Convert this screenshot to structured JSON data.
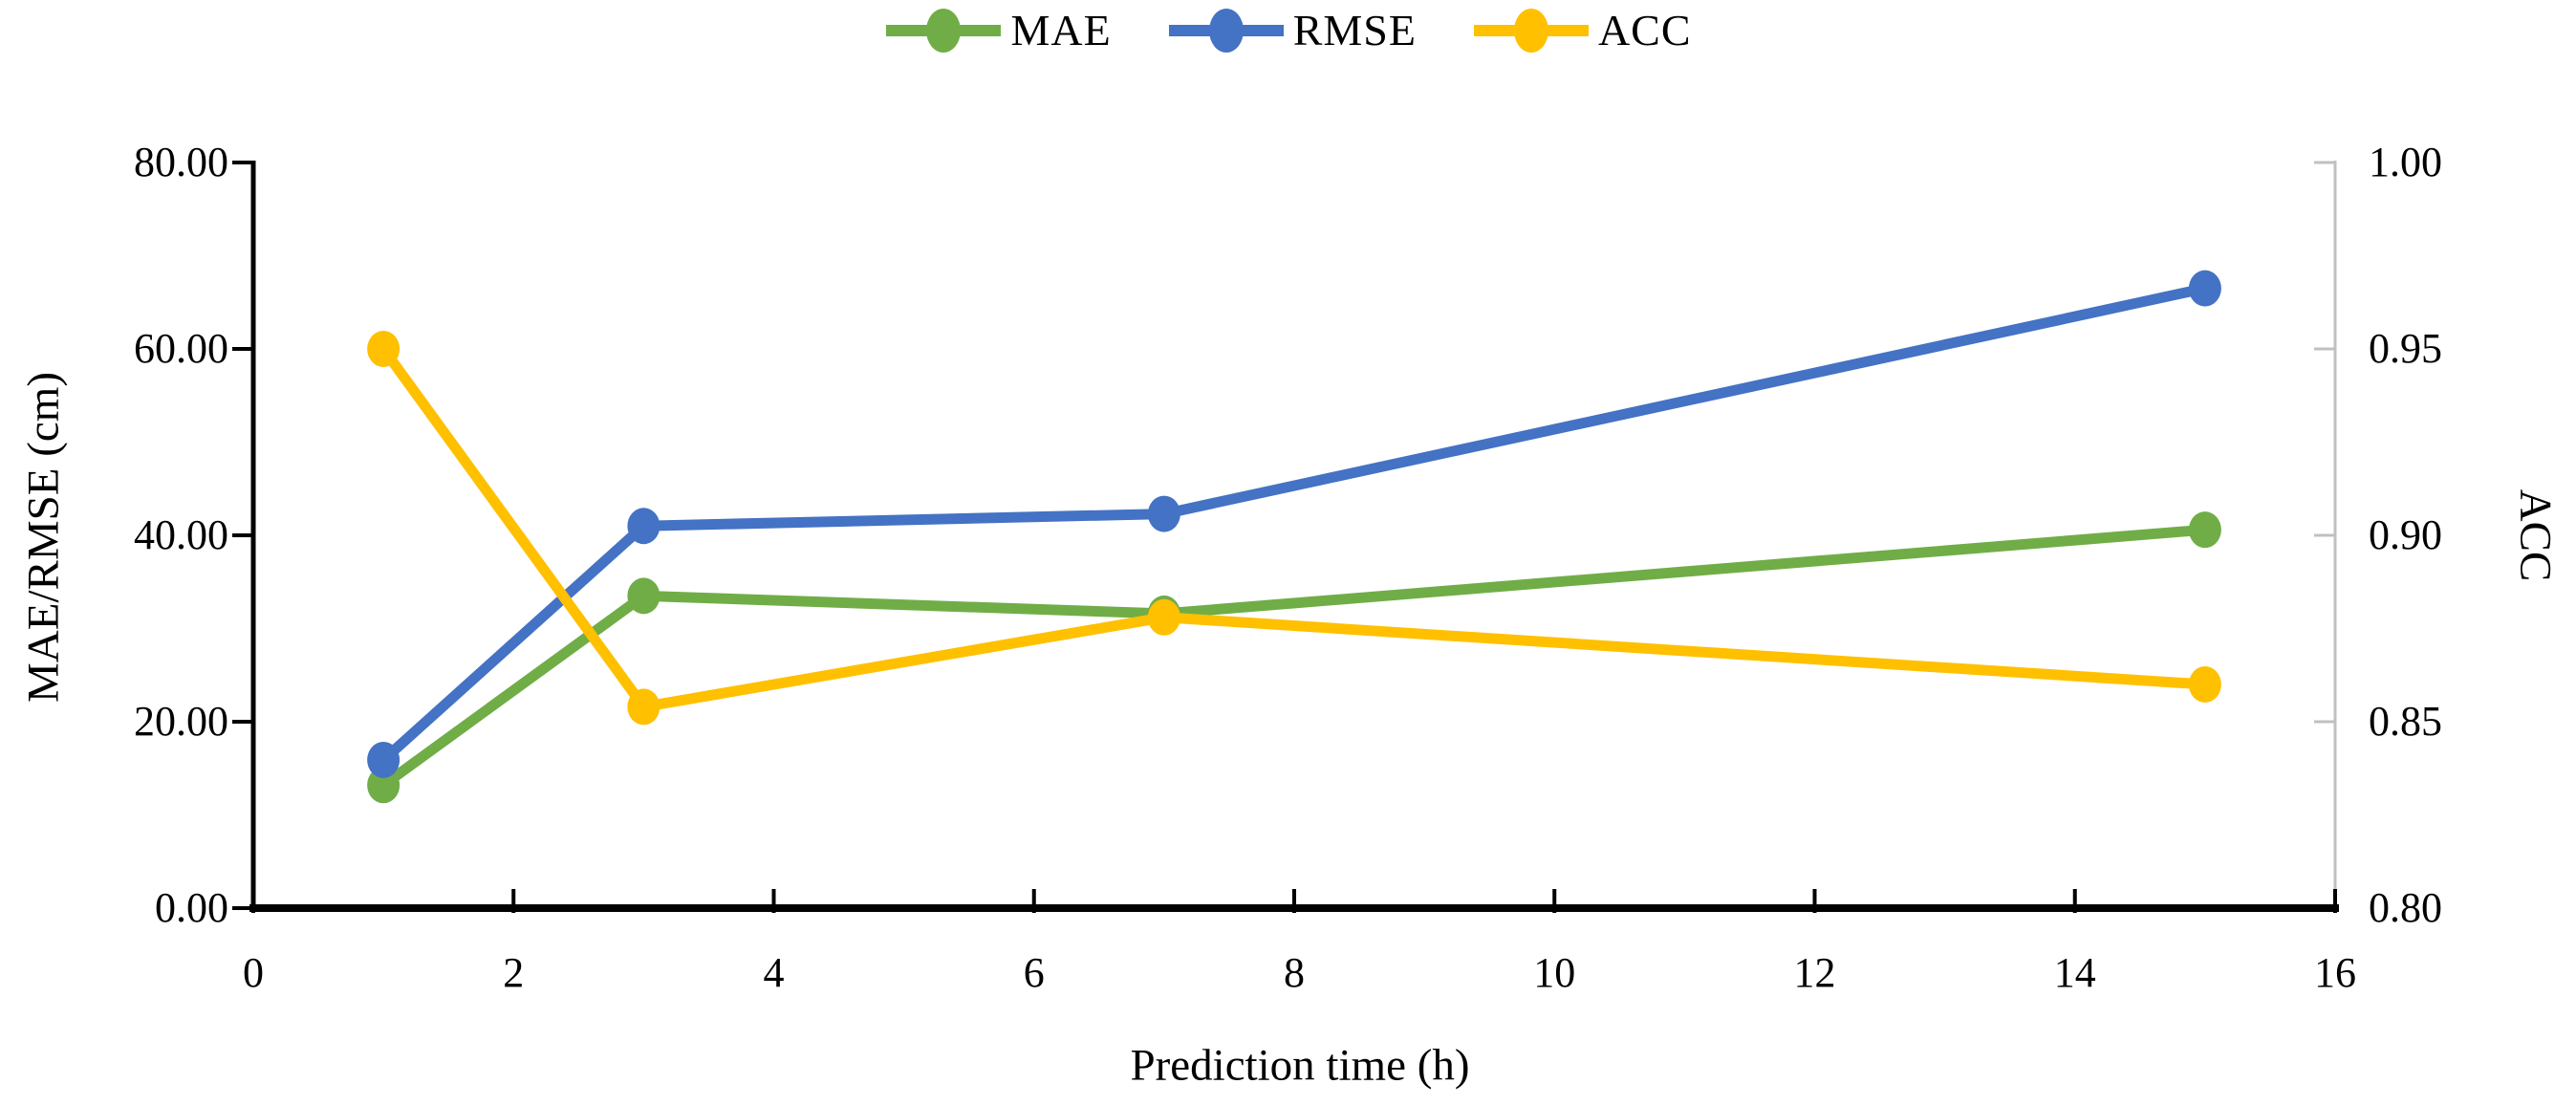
{
  "chart_data": {
    "type": "line",
    "title": "",
    "x": [
      1,
      3,
      7,
      15
    ],
    "x_axis": {
      "label": "Prediction time (h)",
      "min": 0,
      "max": 16,
      "tick_values": [
        0,
        2,
        4,
        6,
        8,
        10,
        12,
        14,
        16
      ],
      "tick_labels": [
        "0",
        "2",
        "4",
        "6",
        "8",
        "10",
        "12",
        "14",
        "16"
      ]
    },
    "left_axis": {
      "label": "MAE/RMSE (cm)",
      "min": 0,
      "max": 80,
      "tick_values": [
        0,
        20,
        40,
        60,
        80
      ],
      "tick_labels": [
        "0.00",
        "20.00",
        "40.00",
        "60.00",
        "80.00"
      ]
    },
    "right_axis": {
      "label": "ACC",
      "min": 0.8,
      "max": 1.0,
      "tick_values": [
        0.8,
        0.85,
        0.9,
        0.95,
        1.0
      ],
      "tick_labels": [
        "0.80",
        "0.85",
        "0.90",
        "0.95",
        "1.00"
      ]
    },
    "series": [
      {
        "name": "MAE",
        "axis": "left",
        "color": "#70AD47",
        "values": [
          13.2,
          33.5,
          31.6,
          40.6
        ]
      },
      {
        "name": "RMSE",
        "axis": "left",
        "color": "#4472C4",
        "values": [
          15.9,
          41.0,
          42.3,
          66.5
        ]
      },
      {
        "name": "ACC",
        "axis": "right",
        "color": "#FFC000",
        "values": [
          0.95,
          0.854,
          0.878,
          0.86
        ]
      }
    ],
    "legend": {
      "position": "top-center",
      "entries": [
        "MAE",
        "RMSE",
        "ACC"
      ]
    },
    "grid": false
  },
  "colors": {
    "background": "#FFFFFF",
    "axis_line": "#000000",
    "right_axis_line": "#C0C0C0",
    "text": "#000000",
    "mae": "#70AD47",
    "rmse": "#4472C4",
    "acc": "#FFC000"
  }
}
